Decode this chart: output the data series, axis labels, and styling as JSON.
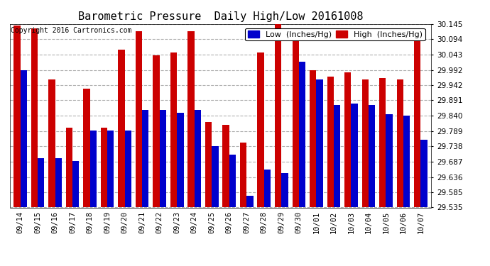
{
  "title": "Barometric Pressure  Daily High/Low 20161008",
  "copyright": "Copyright 2016 Cartronics.com",
  "legend_low": "Low  (Inches/Hg)",
  "legend_high": "High  (Inches/Hg)",
  "ylim": [
    29.535,
    30.145
  ],
  "yticks": [
    29.535,
    29.585,
    29.636,
    29.687,
    29.738,
    29.789,
    29.84,
    29.891,
    29.942,
    29.992,
    30.043,
    30.094,
    30.145
  ],
  "categories": [
    "09/14",
    "09/15",
    "09/16",
    "09/17",
    "09/18",
    "09/19",
    "09/20",
    "09/21",
    "09/22",
    "09/23",
    "09/24",
    "09/25",
    "09/26",
    "09/27",
    "09/28",
    "09/29",
    "09/30",
    "10/01",
    "10/02",
    "10/03",
    "10/04",
    "10/05",
    "10/06",
    "10/07"
  ],
  "high_values": [
    30.14,
    30.13,
    29.96,
    29.8,
    29.93,
    29.8,
    30.06,
    30.12,
    30.04,
    30.05,
    30.12,
    29.82,
    29.81,
    29.75,
    30.05,
    30.145,
    30.11,
    29.99,
    29.97,
    29.985,
    29.96,
    29.965,
    29.96,
    30.09
  ],
  "low_values": [
    29.99,
    29.7,
    29.7,
    29.69,
    29.79,
    29.79,
    29.79,
    29.86,
    29.86,
    29.85,
    29.86,
    29.74,
    29.71,
    29.575,
    29.66,
    29.65,
    30.02,
    29.96,
    29.875,
    29.88,
    29.875,
    29.845,
    29.84,
    29.76
  ],
  "bar_width": 0.38,
  "low_color": "#0000cc",
  "high_color": "#cc0000",
  "bg_color": "#ffffff",
  "plot_bg_color": "#ffffff",
  "grid_color": "#b0b0b0",
  "title_fontsize": 11,
  "tick_fontsize": 7.5,
  "legend_fontsize": 8,
  "figwidth": 6.9,
  "figheight": 3.75,
  "dpi": 100
}
